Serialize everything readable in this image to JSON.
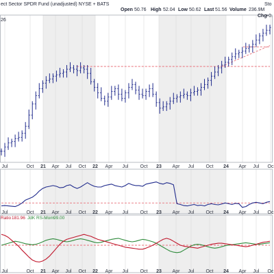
{
  "header": {
    "title": "ect Sector SPDR Fund (unadjusted) NYSE + BATS",
    "open_label": "Open",
    "open_value": "50.76",
    "high_label": "High",
    "high_value": "52.04",
    "low_label": "Low",
    "low_value": "50.62",
    "last_label": "Last",
    "last_value": "51.56",
    "volume_label": "Volume",
    "volume_value": "236.9M",
    "chg_label": "Chg",
    "chg_value": "+0.",
    "corner_text": "Sto",
    "left_fragment": "26"
  },
  "x_axis": {
    "labels": [
      {
        "text": "Jul",
        "bold": false
      },
      {
        "text": "Oct",
        "bold": false
      },
      {
        "text": "21",
        "bold": true
      },
      {
        "text": "Apr",
        "bold": false
      },
      {
        "text": "Jul",
        "bold": false
      },
      {
        "text": "Oct",
        "bold": false
      },
      {
        "text": "22",
        "bold": true
      },
      {
        "text": "Apr",
        "bold": false
      },
      {
        "text": "Jul",
        "bold": false
      },
      {
        "text": "Oct",
        "bold": false
      },
      {
        "text": "23",
        "bold": true
      },
      {
        "text": "Apr",
        "bold": false
      },
      {
        "text": "Jul",
        "bold": false
      },
      {
        "text": "Oct",
        "bold": false
      },
      {
        "text": "24",
        "bold": true
      },
      {
        "text": "Apr",
        "bold": false
      },
      {
        "text": "Jul",
        "bold": false
      },
      {
        "text": "Oc",
        "bold": false
      }
    ],
    "shaded_year_bands": true
  },
  "legend": {
    "ratio_label": "Ratio",
    "ratio_value": "181.96",
    "jdk_label": "JdK RS-Mom",
    "jdk_value": "99.00"
  },
  "colors": {
    "price": "#1f2a8c",
    "ratio": "#1f2a8c",
    "rs_ratio": "#c0152a",
    "rs_momentum": "#2d8a3a",
    "reference": "#e8707a",
    "band": "#eeeeee",
    "grid": "#dcdcdc"
  },
  "chart_data": [
    {
      "type": "ohlc",
      "panel": "price",
      "x_range": [
        0,
        100
      ],
      "ylim": [
        0,
        100
      ],
      "close": [
        6,
        9,
        12,
        13,
        15,
        16,
        19,
        24,
        32,
        40,
        46,
        51,
        55,
        57,
        58,
        60,
        61,
        62,
        63,
        65,
        66,
        65,
        64,
        66,
        65,
        62,
        56,
        52,
        48,
        44,
        42,
        45,
        49,
        51,
        47,
        44,
        48,
        52,
        54,
        50,
        47,
        46,
        49,
        51,
        47,
        41,
        37,
        38,
        40,
        42,
        44,
        45,
        46,
        47,
        46,
        48,
        49,
        50,
        52,
        54,
        57,
        60,
        63,
        66,
        68,
        70,
        72,
        74,
        76,
        77,
        78,
        80,
        81,
        83,
        86,
        89,
        91,
        93,
        95
      ],
      "reference_lines": [
        {
          "y": 67,
          "from": 28,
          "to": 100
        },
        {
          "y": 81,
          "from": 90,
          "to": 100
        }
      ],
      "trend_segments": [
        {
          "from": [
            82,
            67
          ],
          "to": [
            100,
            82
          ]
        }
      ]
    },
    {
      "type": "line",
      "panel": "ratio",
      "x_range": [
        0,
        100
      ],
      "ylim": [
        0,
        100
      ],
      "series": [
        {
          "values": [
            14,
            15,
            14,
            13,
            12,
            16,
            22,
            30,
            34,
            38,
            45,
            55,
            62,
            66,
            68,
            70,
            68,
            64,
            65,
            70,
            72,
            66,
            62,
            66,
            72,
            78,
            72,
            68,
            66,
            66,
            70,
            72,
            74,
            70,
            68,
            66,
            70,
            76,
            72,
            70,
            70,
            68,
            74,
            76,
            78,
            80,
            76,
            74,
            78,
            76,
            72,
            20,
            18,
            15,
            14,
            16,
            18,
            15,
            16,
            14,
            18,
            20,
            18,
            17,
            19,
            22,
            20,
            18,
            21,
            20,
            10,
            12,
            18,
            22,
            24,
            22,
            20,
            24,
            26
          ]
        }
      ],
      "reference_lines": [
        {
          "y": 22,
          "from": 0,
          "to": 100
        }
      ]
    },
    {
      "type": "line",
      "panel": "rrg",
      "x_range": [
        0,
        100
      ],
      "ylim": [
        0,
        100
      ],
      "series": [
        {
          "values": [
            50,
            52,
            54,
            56,
            58,
            57,
            55,
            53,
            52,
            51,
            52,
            54,
            57,
            60,
            62,
            63,
            62,
            60,
            58,
            57,
            58,
            60,
            62,
            63,
            62,
            60,
            58,
            56,
            55,
            56,
            58,
            60,
            62,
            63,
            64,
            62,
            60,
            58,
            57,
            58,
            60,
            62,
            61,
            59,
            57,
            54,
            50,
            46,
            42,
            38,
            36,
            35,
            36,
            40,
            44,
            48,
            51,
            52,
            51,
            49,
            47,
            45,
            44,
            45,
            47,
            49,
            50,
            51,
            52,
            53,
            54,
            55,
            54,
            53,
            52,
            52,
            53,
            54,
            55
          ]
        },
        {
          "values": [
            72,
            70,
            66,
            60,
            54,
            48,
            40,
            33,
            26,
            20,
            17,
            16,
            18,
            22,
            28,
            36,
            44,
            52,
            58,
            62,
            64,
            66,
            68,
            70,
            72,
            70,
            68,
            65,
            62,
            60,
            58,
            56,
            54,
            52,
            50,
            48,
            46,
            45,
            44,
            43,
            42,
            42,
            44,
            47,
            50,
            54,
            58,
            62,
            64,
            62,
            58,
            54,
            50,
            48,
            47,
            46,
            45,
            44,
            46,
            48,
            50,
            52,
            53,
            54,
            54,
            53,
            52,
            51,
            50,
            49,
            48,
            47,
            48,
            50,
            52,
            54,
            56,
            57,
            58
          ]
        }
      ],
      "reference_lines": [
        {
          "y": 50,
          "from": 0,
          "to": 100
        }
      ]
    }
  ]
}
